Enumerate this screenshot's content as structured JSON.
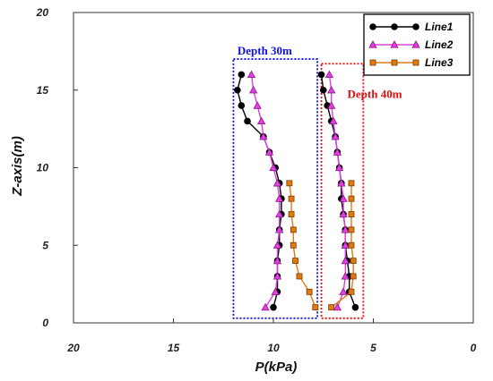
{
  "chart_data": {
    "type": "line",
    "xlabel": "P(kPa)",
    "ylabel": "Z-axis(m)",
    "xlim": [
      20,
      0
    ],
    "ylim": [
      0,
      20
    ],
    "x_reversed": true,
    "xticks": [
      "20",
      "15",
      "10",
      "5",
      "0"
    ],
    "xtick_values": [
      20,
      15,
      10,
      5,
      0
    ],
    "yticks": [
      "0",
      "5",
      "10",
      "15",
      "20"
    ],
    "ytick_values": [
      0,
      5,
      10,
      15,
      20
    ],
    "grid": false,
    "legend_position": "top-right",
    "series": [
      {
        "name": "Line1",
        "color": "#000000",
        "marker": "circle",
        "segments": [
          [
            [
              10.0,
              1.0
            ],
            [
              9.8,
              2.0
            ],
            [
              9.8,
              3.0
            ],
            [
              9.8,
              4.0
            ],
            [
              9.7,
              5.0
            ],
            [
              9.7,
              6.0
            ],
            [
              9.6,
              7.0
            ],
            [
              9.6,
              8.0
            ],
            [
              9.7,
              9.0
            ],
            [
              9.9,
              10.0
            ],
            [
              10.2,
              11.0
            ],
            [
              10.5,
              12.0
            ],
            [
              11.3,
              13.0
            ],
            [
              11.6,
              14.0
            ],
            [
              11.8,
              15.0
            ],
            [
              11.6,
              16.0
            ]
          ],
          [
            [
              5.9,
              1.0
            ],
            [
              6.2,
              2.0
            ],
            [
              6.2,
              3.0
            ],
            [
              6.3,
              4.0
            ],
            [
              6.4,
              5.0
            ],
            [
              6.4,
              6.0
            ],
            [
              6.5,
              7.0
            ],
            [
              6.6,
              8.0
            ],
            [
              6.6,
              9.0
            ],
            [
              6.7,
              10.0
            ],
            [
              6.8,
              11.0
            ],
            [
              6.9,
              12.0
            ],
            [
              7.1,
              13.0
            ],
            [
              7.3,
              14.0
            ],
            [
              7.5,
              15.0
            ],
            [
              7.6,
              16.0
            ]
          ]
        ]
      },
      {
        "name": "Line2",
        "color": "#e040e0",
        "marker": "triangle",
        "segments": [
          [
            [
              10.4,
              1.0
            ],
            [
              9.9,
              2.0
            ],
            [
              9.8,
              3.0
            ],
            [
              9.8,
              4.0
            ],
            [
              9.8,
              5.0
            ],
            [
              9.7,
              6.0
            ],
            [
              9.7,
              7.0
            ],
            [
              9.7,
              8.0
            ],
            [
              9.8,
              9.0
            ],
            [
              10.0,
              10.0
            ],
            [
              10.2,
              11.0
            ],
            [
              10.5,
              12.0
            ],
            [
              10.6,
              13.0
            ],
            [
              10.8,
              14.0
            ],
            [
              11.0,
              15.0
            ],
            [
              11.1,
              16.0
            ]
          ],
          [
            [
              6.8,
              1.0
            ],
            [
              6.5,
              2.0
            ],
            [
              6.4,
              3.0
            ],
            [
              6.4,
              4.0
            ],
            [
              6.4,
              5.0
            ],
            [
              6.4,
              6.0
            ],
            [
              6.5,
              7.0
            ],
            [
              6.5,
              8.0
            ],
            [
              6.6,
              9.0
            ],
            [
              6.7,
              10.0
            ],
            [
              6.8,
              11.0
            ],
            [
              6.9,
              12.0
            ],
            [
              7.0,
              13.0
            ],
            [
              7.1,
              14.0
            ],
            [
              7.1,
              15.0
            ],
            [
              7.2,
              16.0
            ]
          ]
        ]
      },
      {
        "name": "Line3",
        "color": "#e07a10",
        "marker": "square",
        "segments": [
          [
            [
              7.9,
              1.0
            ],
            [
              8.2,
              2.0
            ],
            [
              8.7,
              3.0
            ],
            [
              8.9,
              4.0
            ],
            [
              9.0,
              5.0
            ],
            [
              9.0,
              6.0
            ],
            [
              9.1,
              7.0
            ],
            [
              9.1,
              8.0
            ],
            [
              9.2,
              9.0
            ]
          ],
          [
            [
              7.1,
              1.0
            ],
            [
              6.1,
              2.0
            ],
            [
              6.0,
              3.0
            ],
            [
              6.0,
              4.0
            ],
            [
              6.1,
              5.0
            ],
            [
              6.1,
              6.0
            ],
            [
              6.1,
              7.0
            ],
            [
              6.1,
              8.0
            ],
            [
              6.1,
              9.0
            ]
          ]
        ]
      }
    ],
    "annotations": [
      {
        "text": "Depth 30m",
        "color": "#1010e0",
        "box": {
          "x": [
            12.0,
            7.8
          ],
          "y": [
            0.3,
            17.0
          ]
        },
        "label_at": [
          11.8,
          17.3
        ]
      },
      {
        "text": "Depth 40m",
        "color": "#e01010",
        "box": {
          "x": [
            7.6,
            5.5
          ],
          "y": [
            0.3,
            16.7
          ]
        },
        "label_at": [
          6.3,
          14.5
        ]
      }
    ]
  }
}
